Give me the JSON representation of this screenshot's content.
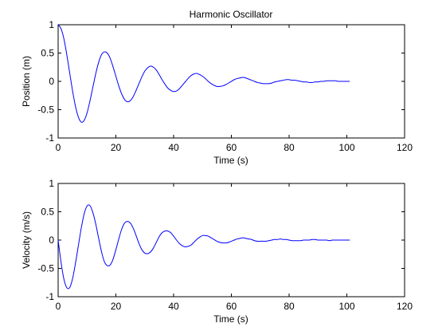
{
  "figure": {
    "background": "#ffffff",
    "line_color": "#0000ff"
  },
  "chart_data": [
    {
      "type": "line",
      "title": "Harmonic Oscillator",
      "xlabel": "Time (s)",
      "ylabel": "Position (m)",
      "xlim": [
        0,
        120
      ],
      "ylim": [
        -1,
        1
      ],
      "xticks": [
        0,
        20,
        40,
        60,
        80,
        100,
        120
      ],
      "yticks": [
        -1,
        -0.5,
        0,
        0.5,
        1
      ],
      "xtick_labels": [
        "0",
        "20",
        "40",
        "60",
        "80",
        "100",
        "120"
      ],
      "ytick_labels": [
        "-1",
        "-0.5",
        "0",
        "0.5",
        "1"
      ],
      "grid": false,
      "series": [
        {
          "color": "#0000ff",
          "x": [
            0,
            1,
            2,
            3,
            4,
            5,
            6,
            7,
            8,
            9,
            10,
            11,
            12,
            13,
            14,
            15,
            16,
            17,
            18,
            19,
            20,
            21,
            22,
            23,
            24,
            25,
            26,
            27,
            28,
            29,
            30,
            31,
            32,
            33,
            34,
            35,
            36,
            37,
            38,
            39,
            40,
            41,
            42,
            43,
            44,
            45,
            46,
            47,
            48,
            49,
            50,
            51,
            52,
            53,
            54,
            55,
            56,
            57,
            58,
            59,
            60,
            61,
            62,
            63,
            64,
            65,
            66,
            67,
            68,
            69,
            70,
            71,
            72,
            73,
            74,
            75,
            76,
            77,
            78,
            79,
            80,
            81,
            82,
            83,
            84,
            85,
            86,
            87,
            88,
            89,
            90,
            91,
            92,
            93,
            94,
            95,
            96,
            97,
            98,
            99,
            100,
            101
          ],
          "y": [
            1,
            0.93,
            0.75,
            0.47,
            0.15,
            -0.17,
            -0.44,
            -0.63,
            -0.72,
            -0.69,
            -0.56,
            -0.35,
            -0.11,
            0.13,
            0.33,
            0.47,
            0.52,
            0.5,
            0.41,
            0.26,
            0.09,
            -0.08,
            -0.22,
            -0.32,
            -0.36,
            -0.34,
            -0.27,
            -0.16,
            -0.04,
            0.08,
            0.18,
            0.24,
            0.27,
            0.25,
            0.2,
            0.12,
            0.03,
            -0.05,
            -0.12,
            -0.16,
            -0.18,
            -0.17,
            -0.13,
            -0.07,
            -0.01,
            0.05,
            0.1,
            0.13,
            0.14,
            0.12,
            0.09,
            0.05,
            0,
            -0.04,
            -0.07,
            -0.09,
            -0.09,
            -0.08,
            -0.06,
            -0.03,
            0,
            0.03,
            0.05,
            0.06,
            0.07,
            0.06,
            0.04,
            0.02,
            0,
            -0.02,
            -0.03,
            -0.04,
            -0.04,
            -0.04,
            -0.03,
            -0.01,
            0,
            0.01,
            0.02,
            0.03,
            0.03,
            0.02,
            0.02,
            0.01,
            0,
            -0.01,
            -0.01,
            -0.02,
            -0.02,
            -0.01,
            -0.01,
            0,
            0,
            0.01,
            0.01,
            0.01,
            0.01,
            0,
            0,
            0,
            0,
            0
          ]
        }
      ]
    },
    {
      "type": "line",
      "title": "",
      "xlabel": "Time (s)",
      "ylabel": "Velocity (m/s)",
      "xlim": [
        0,
        120
      ],
      "ylim": [
        -1,
        1
      ],
      "xticks": [
        0,
        20,
        40,
        60,
        80,
        100,
        120
      ],
      "yticks": [
        -1,
        -0.5,
        0,
        0.5,
        1
      ],
      "xtick_labels": [
        "0",
        "20",
        "40",
        "60",
        "80",
        "100",
        "120"
      ],
      "ytick_labels": [
        "-1",
        "-0.5",
        "0",
        "0.5",
        "1"
      ],
      "grid": false,
      "series": [
        {
          "color": "#0000ff",
          "x": [
            0,
            1,
            2,
            3,
            4,
            5,
            6,
            7,
            8,
            9,
            10,
            11,
            12,
            13,
            14,
            15,
            16,
            17,
            18,
            19,
            20,
            21,
            22,
            23,
            24,
            25,
            26,
            27,
            28,
            29,
            30,
            31,
            32,
            33,
            34,
            35,
            36,
            37,
            38,
            39,
            40,
            41,
            42,
            43,
            44,
            45,
            46,
            47,
            48,
            49,
            50,
            51,
            52,
            53,
            54,
            55,
            56,
            57,
            58,
            59,
            60,
            61,
            62,
            63,
            64,
            65,
            66,
            67,
            68,
            69,
            70,
            71,
            72,
            73,
            74,
            75,
            76,
            77,
            78,
            79,
            80,
            81,
            82,
            83,
            84,
            85,
            86,
            87,
            88,
            89,
            90,
            91,
            92,
            93,
            94,
            95,
            96,
            97,
            98,
            99,
            100,
            101
          ],
          "y": [
            0,
            -0.39,
            -0.69,
            -0.84,
            -0.84,
            -0.68,
            -0.41,
            -0.1,
            0.21,
            0.46,
            0.6,
            0.61,
            0.49,
            0.29,
            0.04,
            -0.2,
            -0.38,
            -0.45,
            -0.44,
            -0.34,
            -0.17,
            0.02,
            0.19,
            0.3,
            0.33,
            0.3,
            0.21,
            0.08,
            -0.06,
            -0.17,
            -0.23,
            -0.24,
            -0.21,
            -0.14,
            -0.04,
            0.06,
            0.13,
            0.16,
            0.16,
            0.13,
            0.07,
            0,
            -0.06,
            -0.1,
            -0.12,
            -0.11,
            -0.09,
            -0.04,
            0.01,
            0.05,
            0.08,
            0.08,
            0.07,
            0.04,
            0.01,
            -0.02,
            -0.04,
            -0.05,
            -0.05,
            -0.04,
            -0.02,
            0,
            0.02,
            0.03,
            0.04,
            0.03,
            0.02,
            0.01,
            -0.01,
            -0.02,
            -0.02,
            -0.02,
            -0.02,
            -0.01,
            0,
            0.01,
            0.01,
            0.02,
            0.01,
            0.01,
            0,
            -0.01,
            -0.01,
            -0.01,
            -0.01,
            0,
            0,
            0,
            0.01,
            0.01,
            0,
            0,
            0,
            0,
            -0.01,
            0,
            0,
            0,
            0,
            0,
            0,
            0
          ]
        }
      ]
    }
  ]
}
